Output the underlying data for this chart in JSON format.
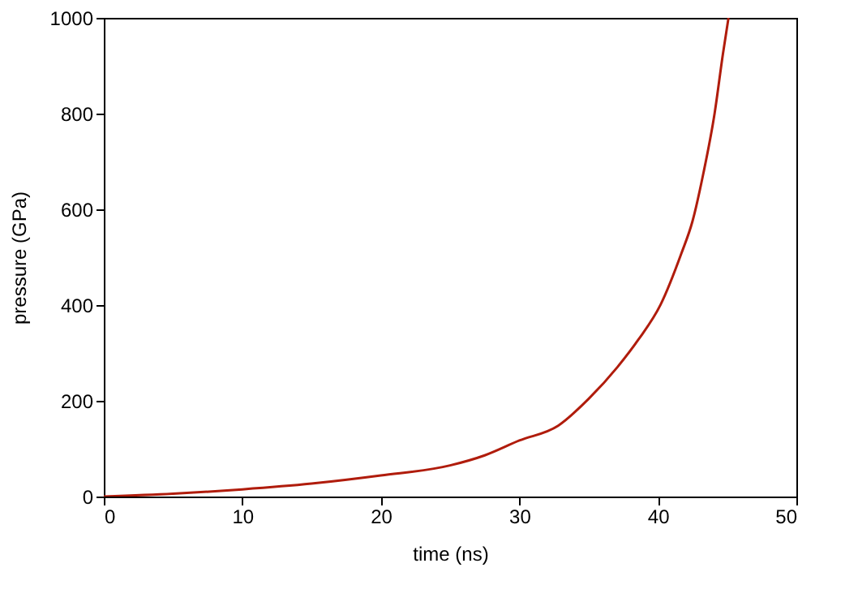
{
  "chart_data": {
    "type": "line",
    "xlabel": "time (ns)",
    "ylabel": "pressure (GPa)",
    "x": [
      0,
      5,
      10,
      15,
      20,
      25,
      27.5,
      30,
      32.8,
      35,
      37.1,
      38.6,
      40.2,
      41.7,
      42.5,
      43.3,
      44.1,
      44.7,
      45.1
    ],
    "series": [
      {
        "color": "#b01c0c",
        "values": [
          0,
          6,
          15,
          27,
          44,
          65,
          86,
          117,
          148,
          204,
          271,
          328,
          401,
          508,
          575,
          677,
          801,
          925,
          1000
        ]
      }
    ],
    "xlim": [
      0,
      50
    ],
    "ylim": [
      0,
      1000
    ],
    "xticks": [
      0,
      10,
      20,
      30,
      40,
      50
    ],
    "yticks": [
      0,
      200,
      400,
      600,
      800,
      1000
    ],
    "grid": false,
    "legend": false,
    "marker": "none",
    "line_style": "solid"
  }
}
